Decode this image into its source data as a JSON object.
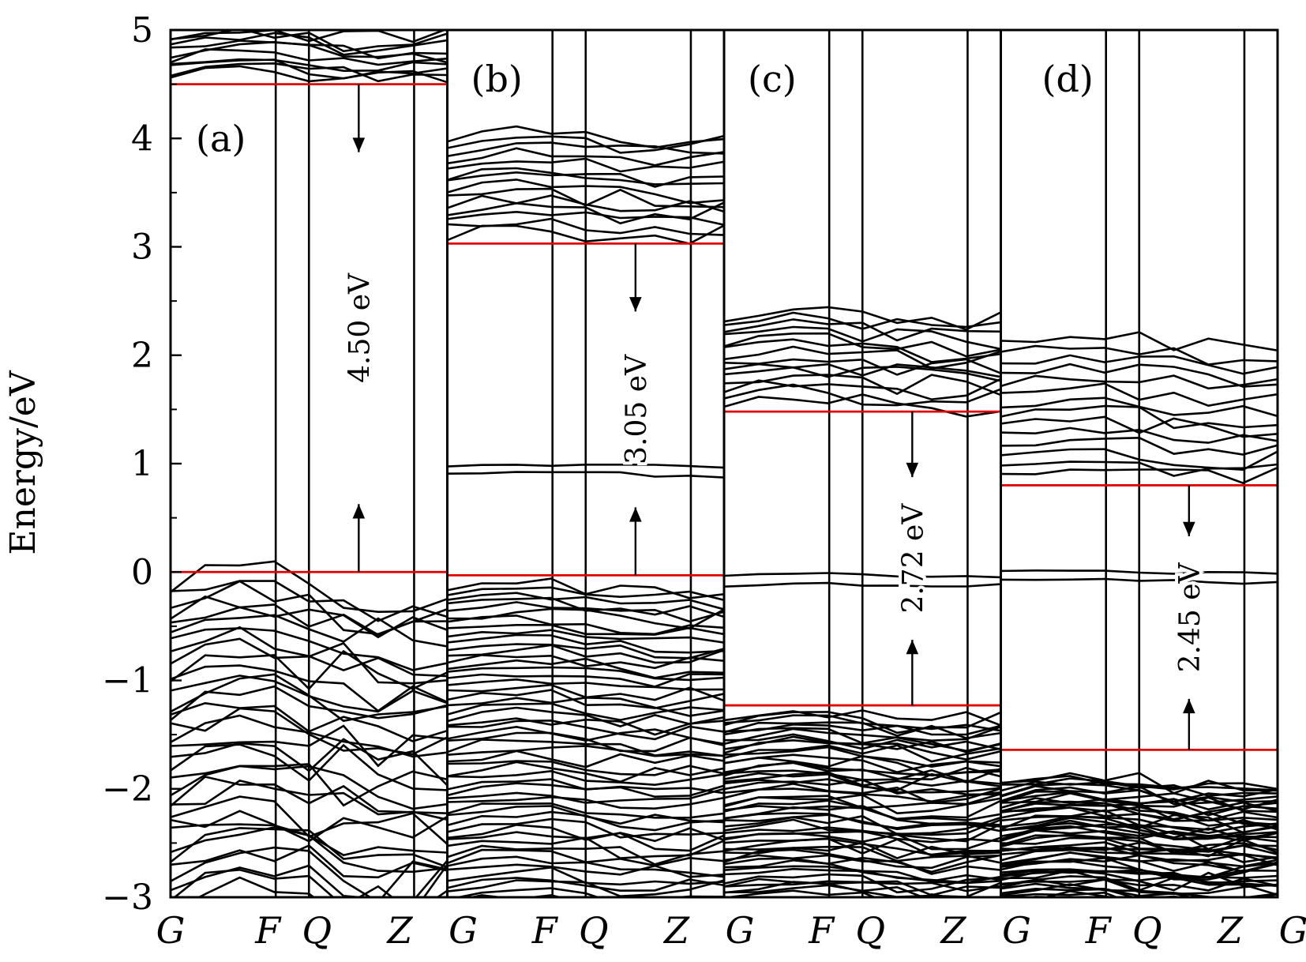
{
  "chart_data": {
    "type": "line",
    "ylabel": "Energy/eV",
    "ylim": [
      -3,
      5
    ],
    "yticks": [
      -3,
      -2,
      -1,
      0,
      1,
      2,
      3,
      4,
      5
    ],
    "ytick_labels": [
      "−3",
      "−2",
      "−1",
      "0",
      "1",
      "2",
      "3",
      "4",
      "5"
    ],
    "k_point_labels": [
      "G",
      "F",
      "Q",
      "Z",
      "G"
    ],
    "k_positions": [
      0,
      0.38,
      0.5,
      0.88,
      1.0
    ],
    "panels": [
      {
        "label": "(a)",
        "gap_label": "4.50 eV",
        "vbm": 0.0,
        "cbm": 4.5,
        "valence_band_top_range": [
          -3,
          -0.1
        ],
        "conduction_band_bottom_range": [
          4.52,
          5
        ]
      },
      {
        "label": "(b)",
        "gap_label": "3.05 eV",
        "vbm": -0.03,
        "cbm": 3.03,
        "valence_band_top_range": [
          -3,
          -0.1
        ],
        "impurity_bands": [
          0.9,
          0.98
        ],
        "conduction_band_bottom_range": [
          3.05,
          4.05
        ]
      },
      {
        "label": "(c)",
        "gap_label": "2.72 eV",
        "vbm": -1.23,
        "cbm": 1.48,
        "valence_band_top_range": [
          -3,
          -1.3
        ],
        "impurity_bands": [
          -0.13,
          -0.03
        ],
        "conduction_band_bottom_range": [
          1.5,
          2.4
        ]
      },
      {
        "label": "(d)",
        "gap_label": "2.45 eV",
        "vbm": -1.64,
        "cbm": 0.8,
        "valence_band_top_range": [
          -3,
          -1.9
        ],
        "impurity_bands": [
          -0.08,
          0.0
        ],
        "conduction_band_bottom_range": [
          0.82,
          2.15
        ]
      }
    ],
    "colors": {
      "bands": "#000000",
      "band_edges": "#e00000"
    }
  }
}
